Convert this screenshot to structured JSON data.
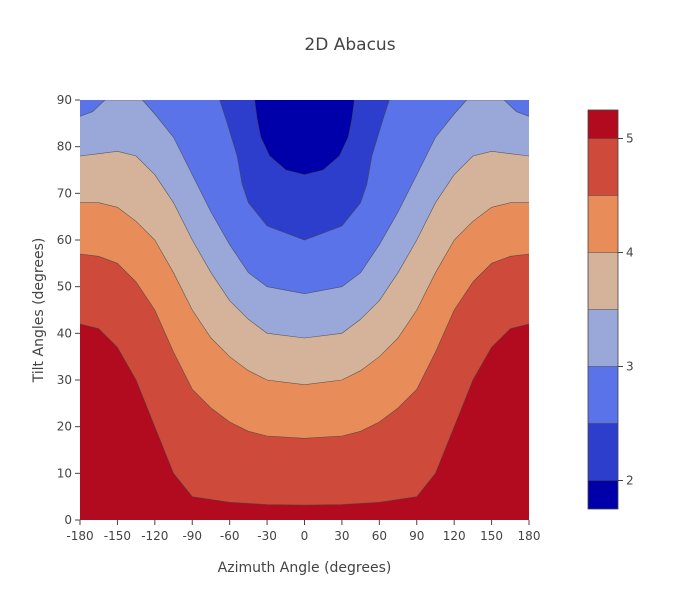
{
  "chart_data": {
    "type": "contour",
    "title": "2D Abacus",
    "xlabel": "Azimuth Angle (degrees)",
    "ylabel": "Tilt Angles (degrees)",
    "xlim": [
      -180,
      180
    ],
    "ylim": [
      0,
      90
    ],
    "x_ticks": [
      -180,
      -150,
      -120,
      -90,
      -60,
      -30,
      0,
      30,
      60,
      90,
      120,
      150,
      180
    ],
    "y_ticks": [
      0,
      10,
      20,
      30,
      40,
      50,
      60,
      70,
      80,
      90
    ],
    "colorbar": {
      "range": [
        1.75,
        5.25
      ],
      "ticks": [
        2,
        3,
        4,
        5
      ],
      "levels": [
        2.0,
        2.5,
        3.0,
        3.5,
        4.0,
        4.5,
        5.0
      ],
      "level_colors": [
        "#0000aa",
        "#2e3ecc",
        "#5a73e8",
        "#99a8d8",
        "#d4b39a",
        "#e88d5a",
        "#ce4a3b",
        "#b20a1f"
      ],
      "colors_hex": [
        "#0000aa",
        "#2e3ecc",
        "#5a73e8",
        "#99a8d8",
        "#d4b39a",
        "#e88d5a",
        "#ce4a3b",
        "#b20a1f"
      ]
    },
    "contours": [
      {
        "level": 5.0,
        "points": [
          [
            -180,
            42
          ],
          [
            -165,
            41
          ],
          [
            -150,
            37
          ],
          [
            -135,
            30
          ],
          [
            -120,
            20
          ],
          [
            -105,
            10
          ],
          [
            -90,
            5
          ],
          [
            -60,
            3.8
          ],
          [
            -30,
            3.3
          ],
          [
            0,
            3.2
          ],
          [
            30,
            3.3
          ],
          [
            60,
            3.8
          ],
          [
            90,
            5
          ],
          [
            105,
            10
          ],
          [
            120,
            20
          ],
          [
            135,
            30
          ],
          [
            150,
            37
          ],
          [
            165,
            41
          ],
          [
            180,
            42
          ]
        ]
      },
      {
        "level": 4.5,
        "points": [
          [
            -180,
            57
          ],
          [
            -165,
            56.5
          ],
          [
            -150,
            55
          ],
          [
            -135,
            51
          ],
          [
            -120,
            45
          ],
          [
            -105,
            36
          ],
          [
            -90,
            28
          ],
          [
            -75,
            24
          ],
          [
            -60,
            21
          ],
          [
            -45,
            19
          ],
          [
            -30,
            18
          ],
          [
            0,
            17.5
          ],
          [
            30,
            18
          ],
          [
            45,
            19
          ],
          [
            60,
            21
          ],
          [
            75,
            24
          ],
          [
            90,
            28
          ],
          [
            105,
            36
          ],
          [
            120,
            45
          ],
          [
            135,
            51
          ],
          [
            150,
            55
          ],
          [
            165,
            56.5
          ],
          [
            180,
            57
          ]
        ]
      },
      {
        "level": 4.0,
        "points": [
          [
            -180,
            68
          ],
          [
            -165,
            68
          ],
          [
            -150,
            67
          ],
          [
            -135,
            64
          ],
          [
            -120,
            60
          ],
          [
            -105,
            53
          ],
          [
            -90,
            45
          ],
          [
            -75,
            39
          ],
          [
            -60,
            35
          ],
          [
            -45,
            32
          ],
          [
            -30,
            30
          ],
          [
            0,
            29
          ],
          [
            30,
            30
          ],
          [
            45,
            32
          ],
          [
            60,
            35
          ],
          [
            75,
            39
          ],
          [
            90,
            45
          ],
          [
            105,
            53
          ],
          [
            120,
            60
          ],
          [
            135,
            64
          ],
          [
            150,
            67
          ],
          [
            165,
            68
          ],
          [
            180,
            68
          ]
        ]
      },
      {
        "level": 3.5,
        "points": [
          [
            -180,
            78
          ],
          [
            -165,
            78.5
          ],
          [
            -150,
            79
          ],
          [
            -135,
            78
          ],
          [
            -120,
            74
          ],
          [
            -105,
            68
          ],
          [
            -90,
            60
          ],
          [
            -75,
            53
          ],
          [
            -60,
            47
          ],
          [
            -45,
            43
          ],
          [
            -30,
            40
          ],
          [
            0,
            39
          ],
          [
            30,
            40
          ],
          [
            45,
            43
          ],
          [
            60,
            47
          ],
          [
            75,
            53
          ],
          [
            90,
            60
          ],
          [
            105,
            68
          ],
          [
            120,
            74
          ],
          [
            135,
            78
          ],
          [
            150,
            79
          ],
          [
            165,
            78.5
          ],
          [
            180,
            78
          ]
        ]
      },
      {
        "level": 3.0,
        "points": [
          [
            -180,
            86.5
          ],
          [
            -170,
            87.5
          ],
          [
            -160,
            90
          ],
          [
            -130,
            90
          ],
          [
            -120,
            87
          ],
          [
            -105,
            82
          ],
          [
            -90,
            74
          ],
          [
            -75,
            66
          ],
          [
            -60,
            59
          ],
          [
            -45,
            53
          ],
          [
            -30,
            50
          ],
          [
            0,
            48.5
          ],
          [
            30,
            50
          ],
          [
            45,
            53
          ],
          [
            60,
            59
          ],
          [
            75,
            66
          ],
          [
            90,
            74
          ],
          [
            105,
            82
          ],
          [
            120,
            87
          ],
          [
            130,
            90
          ],
          [
            160,
            90
          ],
          [
            170,
            87.5
          ],
          [
            180,
            86.5
          ]
        ]
      },
      {
        "level": 2.5,
        "points": [
          [
            -68,
            90
          ],
          [
            -62,
            85
          ],
          [
            -54,
            78
          ],
          [
            -50,
            72
          ],
          [
            -45,
            68
          ],
          [
            -30,
            63
          ],
          [
            0,
            60
          ],
          [
            30,
            63
          ],
          [
            45,
            68
          ],
          [
            50,
            72
          ],
          [
            54,
            78
          ],
          [
            62,
            85
          ],
          [
            68,
            90
          ]
        ]
      },
      {
        "level": 2.0,
        "points": [
          [
            -40,
            90
          ],
          [
            -38,
            86
          ],
          [
            -35,
            82
          ],
          [
            -28,
            78
          ],
          [
            -15,
            75
          ],
          [
            0,
            74
          ],
          [
            15,
            75
          ],
          [
            28,
            78
          ],
          [
            35,
            82
          ],
          [
            38,
            86
          ],
          [
            40,
            90
          ]
        ]
      }
    ]
  }
}
